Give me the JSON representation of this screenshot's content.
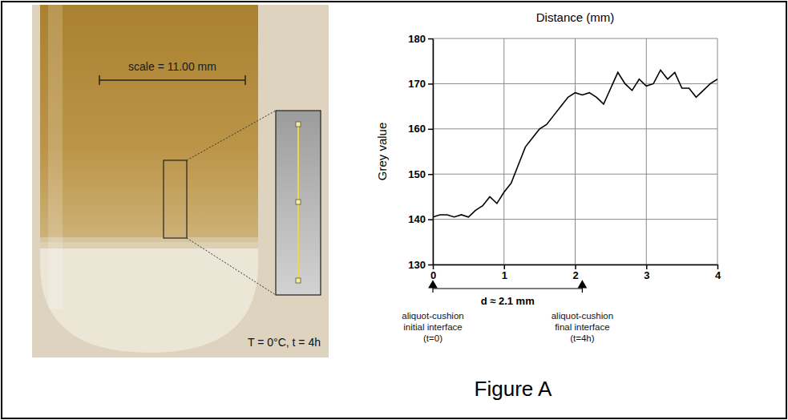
{
  "chart_data": {
    "type": "line",
    "title": "Distance (mm)",
    "ylabel": "Grey value",
    "color": "#000000",
    "x": [
      0,
      0.1,
      0.2,
      0.3,
      0.4,
      0.5,
      0.6,
      0.7,
      0.8,
      0.9,
      1.0,
      1.1,
      1.2,
      1.3,
      1.4,
      1.5,
      1.6,
      1.7,
      1.8,
      1.9,
      2.0,
      2.1,
      2.2,
      2.3,
      2.4,
      2.5,
      2.6,
      2.7,
      2.8,
      2.9,
      3.0,
      3.1,
      3.2,
      3.3,
      3.4,
      3.5,
      3.6,
      3.7,
      3.8,
      3.9,
      4.0
    ],
    "values": [
      140.5,
      141,
      141,
      140.5,
      141,
      140.5,
      142,
      143,
      145,
      143.5,
      146,
      148,
      152,
      156,
      158,
      160,
      161,
      163,
      165,
      167,
      168,
      167.5,
      168,
      167,
      165.5,
      169,
      172.5,
      170,
      168.5,
      171,
      169.5,
      170,
      173,
      171,
      172.5,
      169,
      169,
      167,
      168.5,
      170,
      171
    ],
    "xlim": [
      0,
      4
    ],
    "xticks": [
      0,
      1,
      2,
      3,
      4
    ],
    "ylim": [
      130,
      180
    ],
    "yticks": [
      130,
      140,
      150,
      160,
      170,
      180
    ],
    "grid": true,
    "interval": {
      "from": 0,
      "to": 2.1,
      "label": "d ≈ 2.1 mm"
    },
    "annotations": [
      {
        "x": 0,
        "lines": [
          "aliquot-cushion",
          "initial interface",
          "(t=0)"
        ]
      },
      {
        "x": 2.1,
        "lines": [
          "aliquot-cushion",
          "final interface",
          "(t=4h)"
        ]
      }
    ]
  },
  "photo": {
    "scale_label": "scale = 11.00 mm",
    "condition": "T = 0°C, t = 4h"
  },
  "caption": "Figure A"
}
